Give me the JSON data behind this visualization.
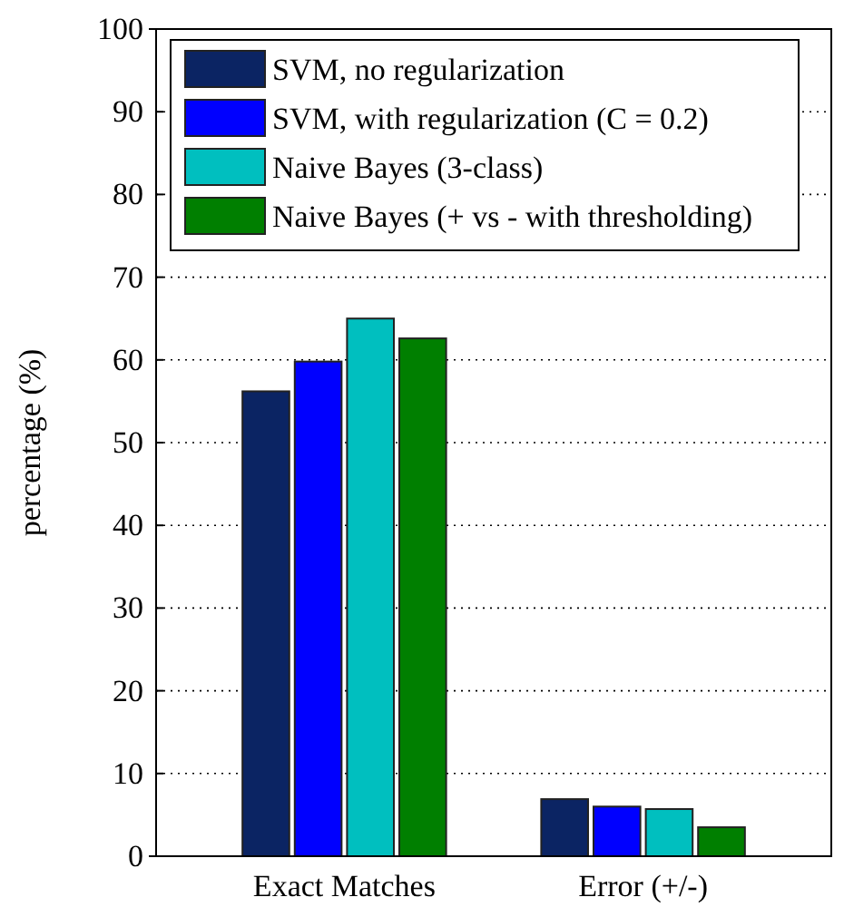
{
  "chart_data": {
    "type": "bar",
    "ylabel": "percentage (%)",
    "categories": [
      "Exact Matches",
      "Error (+/-)"
    ],
    "series": [
      {
        "name": "SVM, no regularization",
        "color": "#0b2463",
        "values": [
          56.2,
          6.9
        ]
      },
      {
        "name": "SVM, with regularization (C = 0.2)",
        "color": "#0000ff",
        "values": [
          59.8,
          6.0
        ]
      },
      {
        "name": "Naive Bayes (3-class)",
        "color": "#00bfbf",
        "values": [
          65.0,
          5.7
        ]
      },
      {
        "name": "Naive Bayes (+ vs - with thresholding)",
        "color": "#007f00",
        "values": [
          62.6,
          3.5
        ]
      }
    ],
    "ylim": [
      0,
      100
    ],
    "yticks": [
      0,
      10,
      20,
      30,
      40,
      50,
      60,
      70,
      80,
      90,
      100
    ],
    "grid": "y",
    "legend": "top left"
  }
}
